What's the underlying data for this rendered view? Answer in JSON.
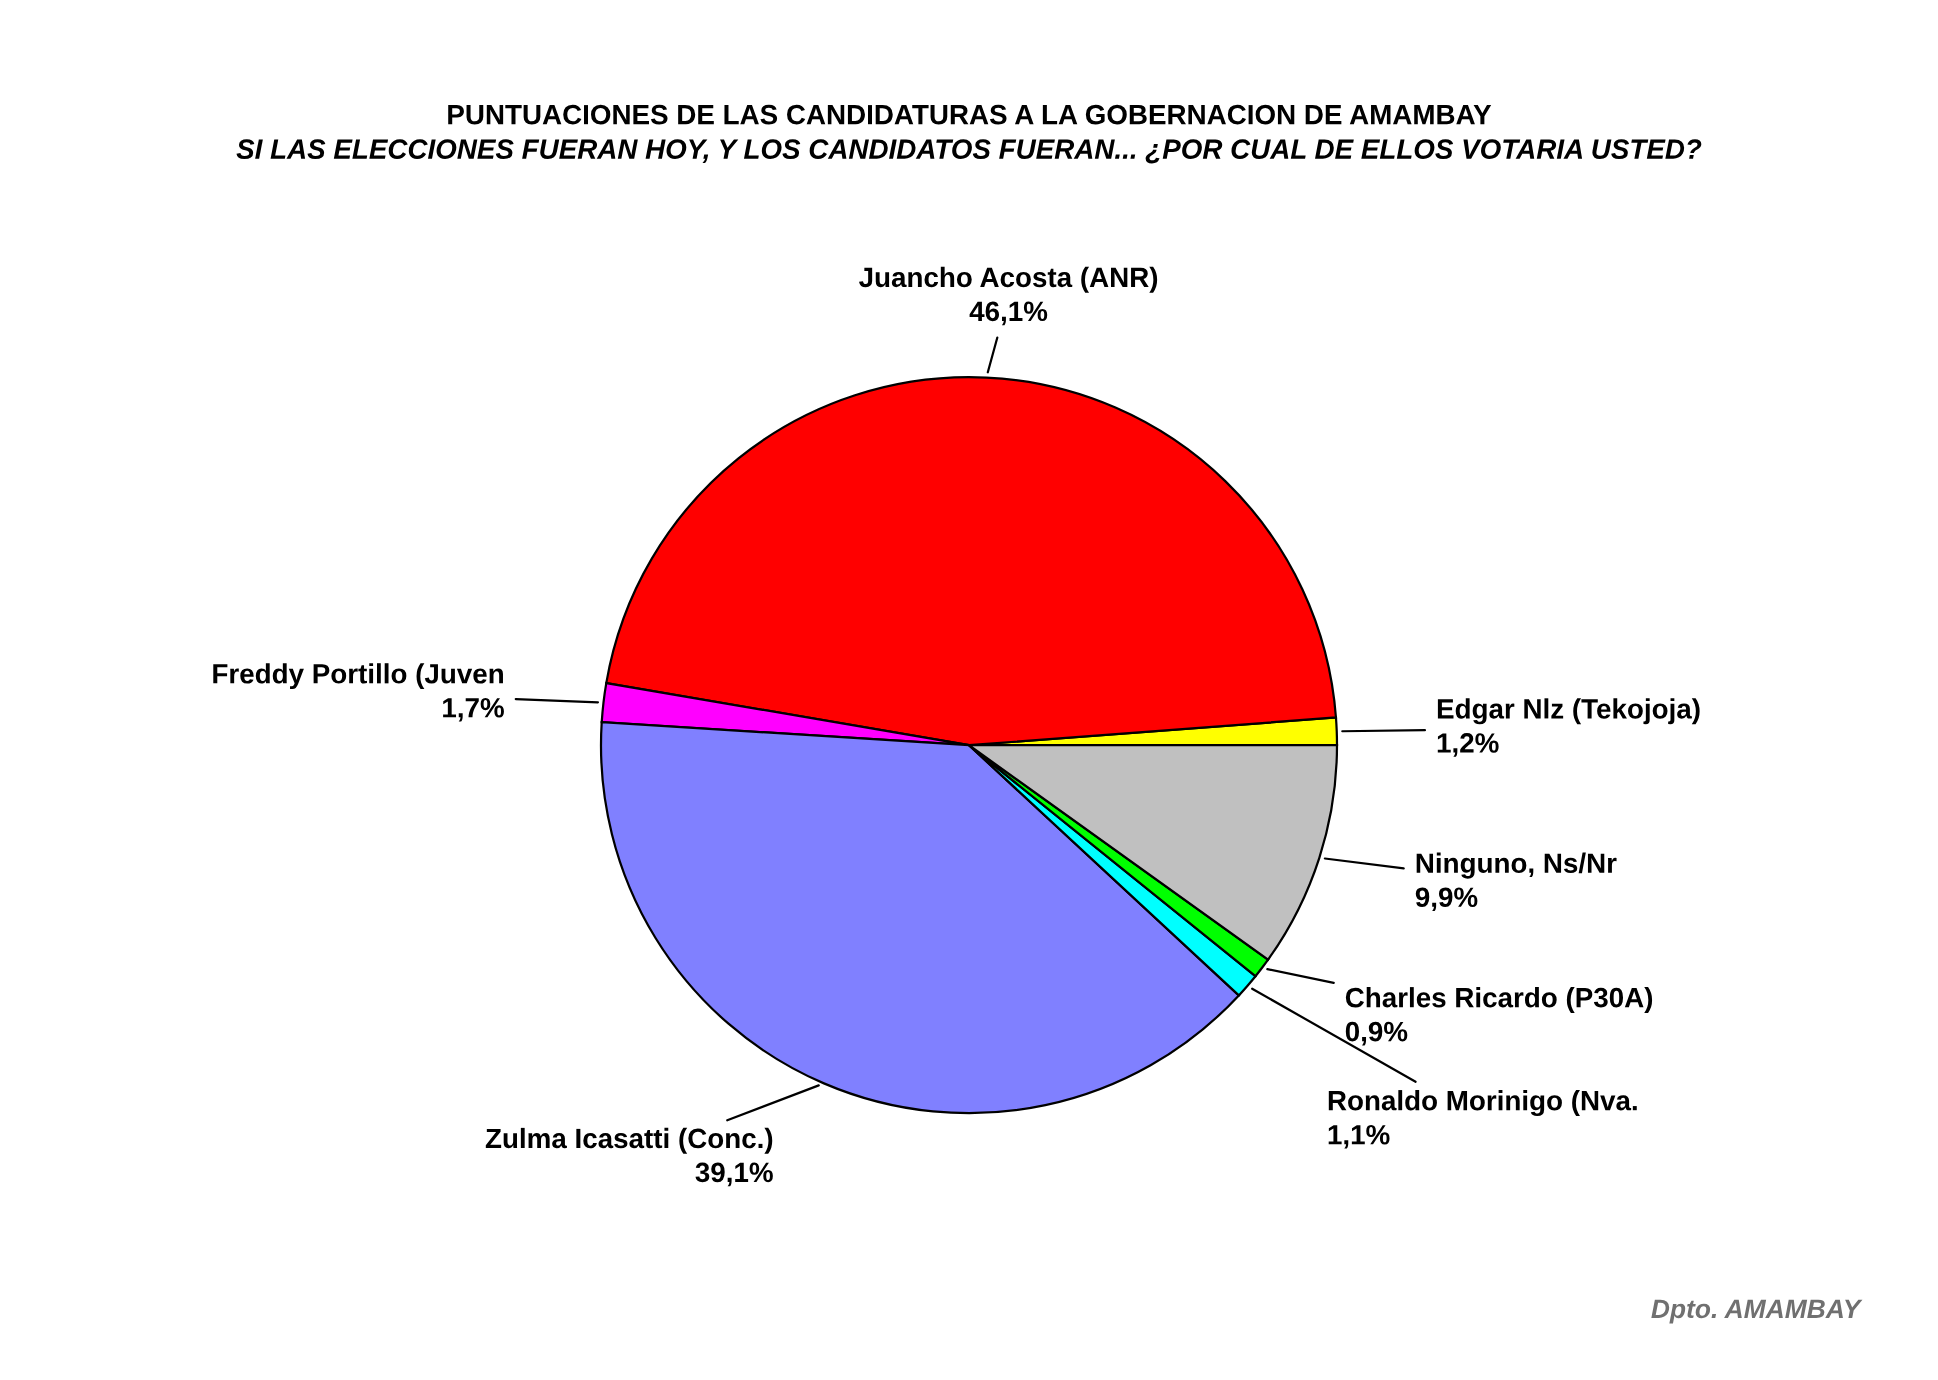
{
  "chart_data": {
    "type": "pie",
    "title": "PUNTUACIONES DE LAS CANDIDATURAS A LA GOBERNACION DE AMAMBAY",
    "subtitle": "SI LAS ELECCIONES FUERAN HOY, Y LOS CANDIDATOS FUERAN... ¿POR CUAL DE ELLOS VOTARIA USTED?",
    "categories": [
      "Edgar Nlz (Tekojoja)",
      "Juancho Acosta (ANR)",
      "Freddy Portillo (Juven",
      "Zulma Icasatti (Conc.)",
      "Ronaldo Morinigo (Nva.",
      "Charles Ricardo (P30A)",
      "Ninguno, Ns/Nr"
    ],
    "values": [
      1.2,
      46.1,
      1.7,
      39.1,
      1.1,
      0.9,
      9.9
    ],
    "value_labels": [
      "1,2%",
      "46,1%",
      "1,7%",
      "39,1%",
      "1,1%",
      "0,9%",
      "9,9%"
    ],
    "colors": [
      "#ffff00",
      "#ff0000",
      "#ff00ff",
      "#8080ff",
      "#00ffff",
      "#00ff00",
      "#c0c0c0"
    ],
    "annotations": [
      "Dpto. AMAMBAY"
    ]
  }
}
